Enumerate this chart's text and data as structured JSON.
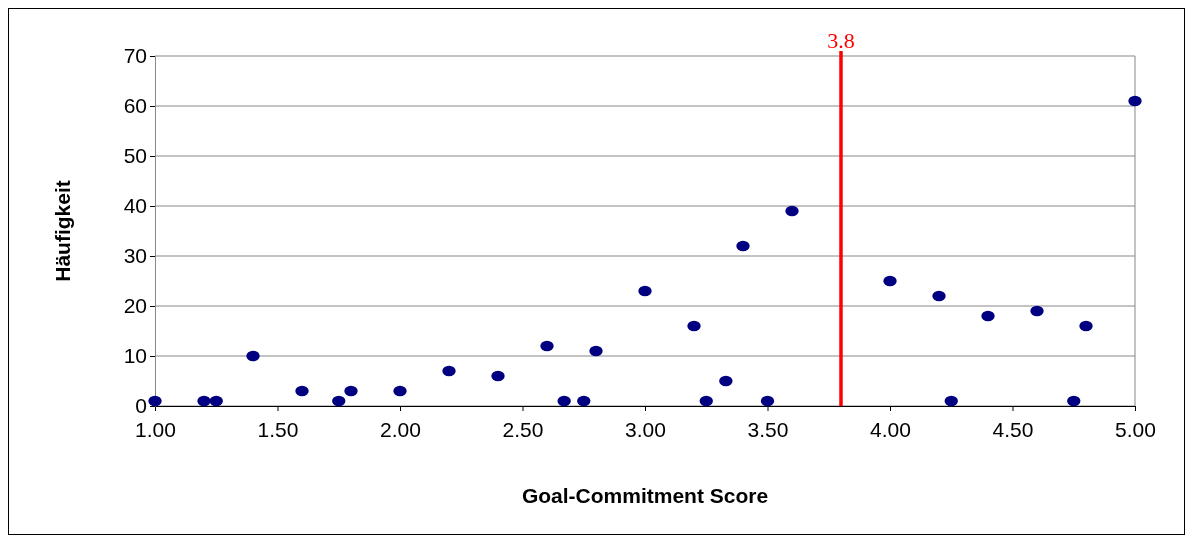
{
  "chart_data": {
    "type": "scatter",
    "xlabel": "Goal-Commitment Score",
    "ylabel": "Häufigkeit",
    "x": [
      1.0,
      1.2,
      1.25,
      1.4,
      1.6,
      1.75,
      1.8,
      2.0,
      2.2,
      2.4,
      2.6,
      2.67,
      2.75,
      2.8,
      3.0,
      3.2,
      3.25,
      3.33,
      3.4,
      3.5,
      3.6,
      4.0,
      4.2,
      4.25,
      4.4,
      4.6,
      4.75,
      4.8,
      5.0
    ],
    "series": [
      {
        "color": "#000080",
        "values": [
          1,
          1,
          1,
          10,
          3,
          1,
          3,
          3,
          7,
          6,
          12,
          1,
          1,
          11,
          23,
          16,
          1,
          5,
          32,
          1,
          39,
          25,
          22,
          1,
          18,
          19,
          1,
          16,
          61
        ]
      }
    ],
    "xlim": [
      1,
      5
    ],
    "xticks": [
      {
        "value": 1,
        "label": "1.00"
      },
      {
        "value": 1.5,
        "label": "1.50"
      },
      {
        "value": 2,
        "label": "2.00"
      },
      {
        "value": 2.5,
        "label": "2.50"
      },
      {
        "value": 3,
        "label": "3.00"
      },
      {
        "value": 3.5,
        "label": "3.50"
      },
      {
        "value": 4,
        "label": "4.00"
      },
      {
        "value": 4.5,
        "label": "4.50"
      },
      {
        "value": 5,
        "label": "5.00"
      }
    ],
    "ylim": [
      0,
      70
    ],
    "yticks": [
      0,
      10,
      20,
      30,
      40,
      50,
      60,
      70
    ],
    "grid": "y",
    "marker": "circle",
    "ref_lines": [
      {
        "axis": "x",
        "value": 3.8,
        "label": "3.8",
        "color": "#ff0000"
      }
    ]
  }
}
